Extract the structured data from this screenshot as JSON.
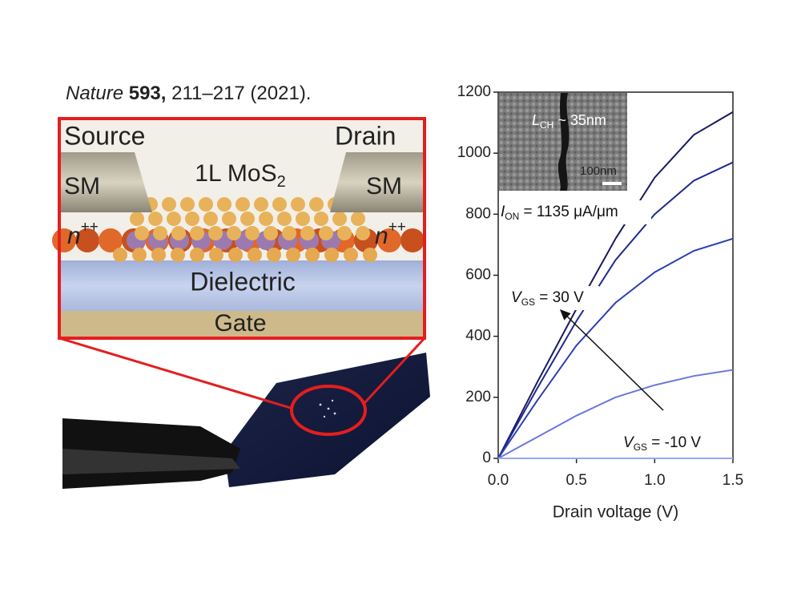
{
  "citation": {
    "journal": "Nature",
    "volume": "593,",
    "pages": "211–217 (2021)."
  },
  "diagram": {
    "source": "Source",
    "drain": "Drain",
    "sm_left": "SM",
    "sm_right": "SM",
    "layer": {
      "main": "1L MoS",
      "sub": "2"
    },
    "doping_left": {
      "main": "n",
      "sup": "++"
    },
    "doping_right": {
      "main": "n",
      "sup": "++"
    },
    "dielectric": "Dielectric",
    "gate": "Gate"
  },
  "chart_data": {
    "type": "line",
    "x": [
      0,
      0.25,
      0.5,
      0.75,
      1.0,
      1.25,
      1.5
    ],
    "series": [
      {
        "color": "#191a5e",
        "values": [
          0,
          250,
          490,
          720,
          920,
          1060,
          1135
        ]
      },
      {
        "color": "#1f2a8f",
        "values": [
          0,
          230,
          450,
          650,
          800,
          910,
          970
        ]
      },
      {
        "color": "#2b3fb3",
        "values": [
          0,
          190,
          370,
          510,
          610,
          680,
          720
        ]
      },
      {
        "color": "#6a78dc",
        "values": [
          0,
          70,
          140,
          200,
          240,
          270,
          290
        ]
      },
      {
        "color": "#9aa6f0",
        "values": [
          0,
          0,
          0,
          0,
          0,
          0,
          0
        ]
      }
    ],
    "xlabel": "Drain voltage (V)",
    "xlim": [
      0,
      1.5
    ],
    "ylim": [
      0,
      1200
    ],
    "xticks": [
      {
        "value": 0,
        "label": "0.0"
      },
      0.5,
      {
        "value": 1,
        "label": "1.0"
      },
      1.5
    ],
    "yticks": [
      0,
      200,
      400,
      600,
      800,
      1000,
      1200
    ],
    "annotations": [
      {
        "main": "V",
        "sub": "GS",
        "rest": " = 30 V"
      },
      {
        "main": "V",
        "sub": "GS",
        "rest": " = -10 V"
      },
      {
        "main": "I",
        "sub": "ON",
        "rest": " = 1135 μA/μm"
      }
    ],
    "inset": {
      "length": {
        "main": "L",
        "sub": "CH",
        "rest": " ~ 35nm"
      },
      "scale_bar": "100nm"
    }
  }
}
